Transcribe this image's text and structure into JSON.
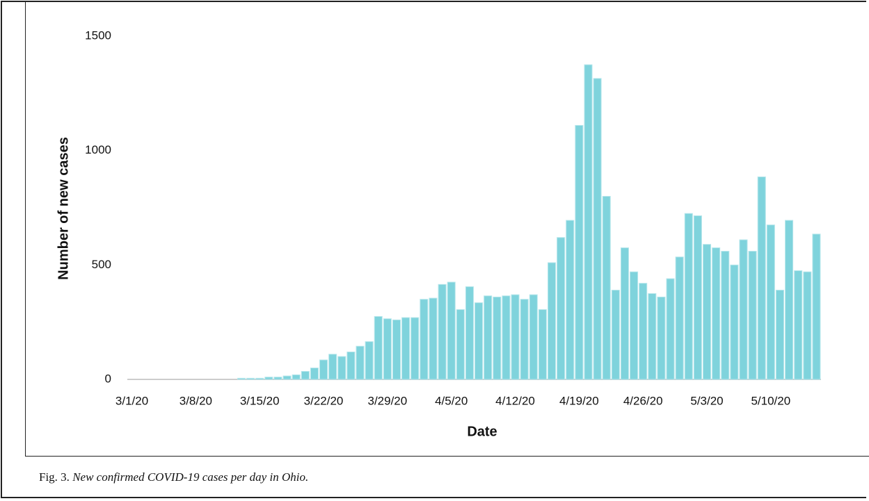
{
  "chart_data": {
    "type": "bar",
    "y_label": "Number of new cases",
    "x_label": "Date",
    "categories": [
      "3/1/20",
      null,
      null,
      null,
      null,
      null,
      null,
      "3/8/20",
      null,
      null,
      null,
      null,
      null,
      null,
      "3/15/20",
      null,
      null,
      null,
      null,
      null,
      null,
      "3/22/20",
      null,
      null,
      null,
      null,
      null,
      null,
      "3/29/20",
      null,
      null,
      null,
      null,
      null,
      null,
      "4/5/20",
      null,
      null,
      null,
      null,
      null,
      null,
      "4/12/20",
      null,
      null,
      null,
      null,
      null,
      null,
      "4/19/20",
      null,
      null,
      null,
      null,
      null,
      null,
      "4/26/20",
      null,
      null,
      null,
      null,
      null,
      null,
      "5/3/20",
      null,
      null,
      null,
      null,
      null,
      null,
      "5/10/20",
      null,
      null,
      null,
      null,
      null
    ],
    "values": [
      0,
      0,
      0,
      0,
      0,
      0,
      0,
      0,
      0,
      0,
      0,
      0,
      5,
      5,
      5,
      10,
      10,
      15,
      20,
      35,
      50,
      85,
      110,
      100,
      120,
      145,
      165,
      275,
      265,
      260,
      270,
      270,
      350,
      355,
      415,
      425,
      305,
      405,
      335,
      365,
      360,
      365,
      370,
      350,
      370,
      305,
      510,
      620,
      695,
      1110,
      1375,
      1315,
      800,
      390,
      575,
      470,
      420,
      375,
      360,
      440,
      535,
      725,
      715,
      590,
      575,
      560,
      500,
      610,
      560,
      885,
      675,
      390,
      695,
      475,
      470,
      635
    ],
    "color": "#7fd3dc",
    "ylim": [
      0,
      1500
    ],
    "yticks": [
      0,
      500,
      1000,
      1500
    ],
    "grid": false
  },
  "caption": {
    "label": "Fig. 3.",
    "text": "New confirmed COVID-19 cases per day in Ohio."
  }
}
